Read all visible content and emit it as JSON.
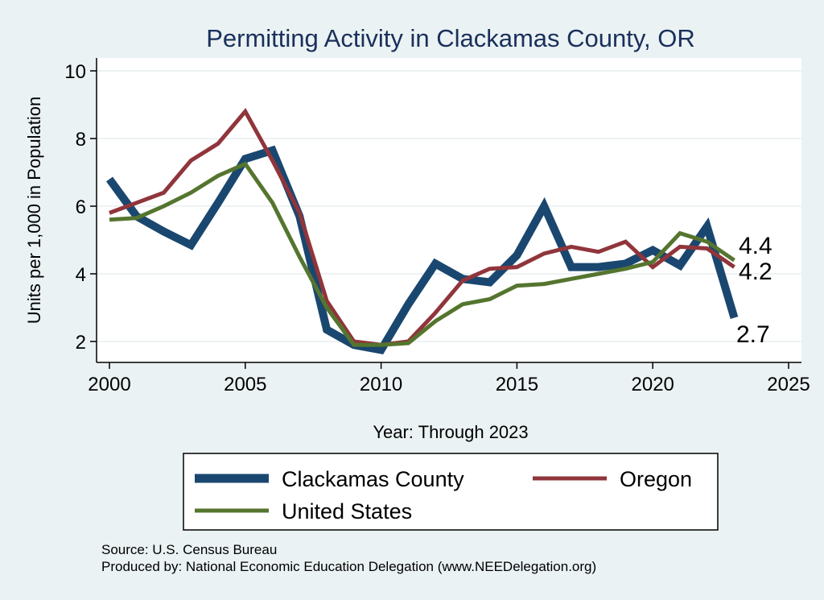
{
  "chart_data": {
    "type": "line",
    "title": "Permitting Activity in Clackamas County, OR",
    "xlabel": "Year: Through 2023",
    "ylabel": "Units per 1,000 in Population",
    "xlim": [
      2000,
      2025
    ],
    "ylim": [
      1.5,
      10.4
    ],
    "x_ticks": [
      2000,
      2005,
      2010,
      2015,
      2020,
      2025
    ],
    "y_ticks": [
      2,
      4,
      6,
      8,
      10
    ],
    "grid": true,
    "legend_position": "bottom",
    "x": [
      2000,
      2001,
      2002,
      2003,
      2004,
      2005,
      2006,
      2007,
      2008,
      2009,
      2010,
      2011,
      2012,
      2013,
      2014,
      2015,
      2016,
      2017,
      2018,
      2019,
      2020,
      2021,
      2022,
      2023
    ],
    "series": [
      {
        "name": "Clackamas County",
        "color": "#1a476f",
        "values": [
          6.8,
          5.7,
          5.25,
          4.85,
          6.1,
          7.4,
          7.65,
          5.7,
          2.35,
          1.9,
          1.75,
          3.1,
          4.3,
          3.85,
          3.75,
          4.55,
          6.0,
          4.2,
          4.2,
          4.3,
          4.7,
          4.25,
          5.4,
          2.7
        ]
      },
      {
        "name": "Oregon",
        "color": "#90353b",
        "values": [
          5.8,
          6.1,
          6.4,
          7.35,
          7.85,
          8.8,
          7.35,
          5.8,
          3.2,
          2.0,
          1.9,
          2.0,
          2.85,
          3.8,
          4.15,
          4.2,
          4.6,
          4.8,
          4.65,
          4.95,
          4.2,
          4.8,
          4.75,
          4.2
        ]
      },
      {
        "name": "United States",
        "color": "#55752f",
        "values": [
          5.6,
          5.65,
          6.0,
          6.4,
          6.9,
          7.25,
          6.1,
          4.5,
          3.0,
          1.9,
          1.9,
          1.95,
          2.6,
          3.1,
          3.25,
          3.65,
          3.7,
          3.85,
          4.0,
          4.15,
          4.35,
          5.2,
          4.95,
          4.4
        ]
      }
    ],
    "end_labels": [
      "2.7",
      "4.2",
      "4.4"
    ],
    "legend": [
      "Clackamas County",
      "Oregon",
      "United States"
    ]
  },
  "footer": {
    "source": "Source: U.S. Census Bureau",
    "produced_by": "Produced by: National Economic Education Delegation (www.NEEDelegation.org)"
  }
}
